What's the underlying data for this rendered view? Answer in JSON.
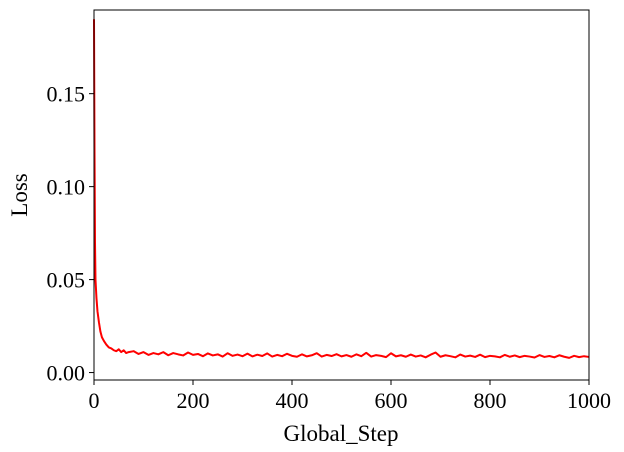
{
  "chart_data": {
    "type": "line",
    "xlabel": "Global_Step",
    "ylabel": "Loss",
    "xlim": [
      0,
      1000
    ],
    "ylim": [
      -0.004,
      0.195
    ],
    "x_ticks": [
      0,
      200,
      400,
      600,
      800,
      1000
    ],
    "x_tick_labels": [
      "0",
      "200",
      "400",
      "600",
      "800",
      "1000"
    ],
    "y_ticks": [
      0.0,
      0.05,
      0.1,
      0.15
    ],
    "y_tick_labels": [
      "0.00",
      "0.05",
      "0.10",
      "0.15"
    ],
    "grid": false,
    "series": [
      {
        "color": "#ff0000",
        "x": [
          0,
          1,
          2,
          3,
          5,
          7,
          10,
          13,
          16,
          20,
          25,
          30,
          35,
          40,
          45,
          50,
          55,
          60,
          65,
          70,
          80,
          90,
          100,
          110,
          120,
          130,
          140,
          150,
          160,
          170,
          180,
          190,
          200,
          210,
          220,
          230,
          240,
          250,
          260,
          270,
          280,
          290,
          300,
          310,
          320,
          330,
          340,
          350,
          360,
          370,
          380,
          390,
          400,
          410,
          420,
          430,
          440,
          450,
          460,
          470,
          480,
          490,
          500,
          510,
          520,
          530,
          540,
          550,
          560,
          570,
          580,
          590,
          600,
          610,
          620,
          630,
          640,
          650,
          660,
          670,
          680,
          690,
          700,
          710,
          720,
          730,
          740,
          750,
          760,
          770,
          780,
          790,
          800,
          810,
          820,
          830,
          840,
          850,
          860,
          870,
          880,
          890,
          900,
          910,
          920,
          930,
          940,
          950,
          960,
          970,
          980,
          990,
          1000
        ],
        "y": [
          0.19,
          0.12,
          0.07,
          0.05,
          0.04,
          0.033,
          0.027,
          0.022,
          0.019,
          0.017,
          0.015,
          0.0135,
          0.013,
          0.012,
          0.0115,
          0.0125,
          0.011,
          0.012,
          0.0105,
          0.011,
          0.0115,
          0.01,
          0.011,
          0.0095,
          0.0105,
          0.0098,
          0.011,
          0.0093,
          0.0105,
          0.0098,
          0.0092,
          0.0108,
          0.0095,
          0.01,
          0.0088,
          0.0103,
          0.0092,
          0.0098,
          0.0086,
          0.0104,
          0.009,
          0.0097,
          0.0088,
          0.0102,
          0.0087,
          0.0096,
          0.0089,
          0.0103,
          0.0086,
          0.0095,
          0.0088,
          0.0101,
          0.009,
          0.0085,
          0.0098,
          0.0087,
          0.0093,
          0.0104,
          0.0086,
          0.0095,
          0.0089,
          0.0099,
          0.0087,
          0.0094,
          0.0085,
          0.0098,
          0.0088,
          0.0106,
          0.0086,
          0.0094,
          0.009,
          0.0083,
          0.0104,
          0.0087,
          0.0093,
          0.0085,
          0.0097,
          0.0086,
          0.0092,
          0.0082,
          0.0096,
          0.0108,
          0.0085,
          0.0093,
          0.0088,
          0.0082,
          0.0097,
          0.0086,
          0.0091,
          0.0084,
          0.0096,
          0.0083,
          0.009,
          0.0087,
          0.0082,
          0.0095,
          0.0085,
          0.0092,
          0.0083,
          0.009,
          0.0086,
          0.0081,
          0.0094,
          0.0084,
          0.0089,
          0.0082,
          0.0093,
          0.0085,
          0.0079,
          0.009,
          0.0083,
          0.0088,
          0.0084
        ]
      }
    ]
  }
}
